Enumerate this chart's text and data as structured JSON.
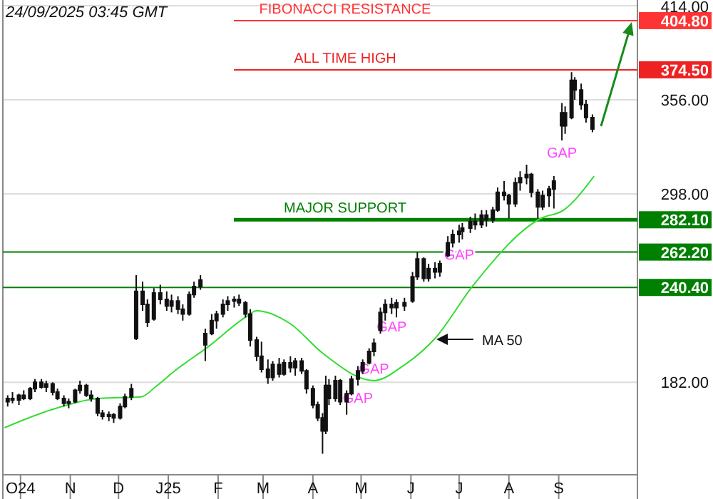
{
  "chart_data": {
    "type": "candlestick",
    "title": "24/09/2025 03:45 GMT",
    "x": [
      "2024-09-23",
      "2024-09-26",
      "2024-09-30",
      "2024-10-03",
      "2024-10-07",
      "2024-10-10",
      "2024-10-14",
      "2024-10-17",
      "2024-10-21",
      "2024-10-24",
      "2024-10-28",
      "2024-10-31",
      "2024-11-04",
      "2024-11-07",
      "2024-11-11",
      "2024-11-14",
      "2024-11-18",
      "2024-11-21",
      "2024-11-25",
      "2024-11-28",
      "2024-12-02",
      "2024-12-05",
      "2024-12-09",
      "2024-12-12",
      "2024-12-16",
      "2024-12-19",
      "2024-12-23",
      "2024-12-27",
      "2024-12-31",
      "2025-01-03",
      "2025-01-07",
      "2025-01-10",
      "2025-01-14",
      "2025-01-17",
      "2025-01-21",
      "2025-01-24",
      "2025-01-28",
      "2025-01-31",
      "2025-02-04",
      "2025-02-07",
      "2025-02-11",
      "2025-02-14",
      "2025-02-18",
      "2025-02-21",
      "2025-02-25",
      "2025-02-28",
      "2025-03-04",
      "2025-03-07",
      "2025-03-11",
      "2025-03-14",
      "2025-03-18",
      "2025-03-21",
      "2025-03-25",
      "2025-03-28",
      "2025-04-01",
      "2025-04-04",
      "2025-04-07",
      "2025-04-09",
      "2025-04-11",
      "2025-04-15",
      "2025-04-18",
      "2025-04-22",
      "2025-04-25",
      "2025-04-29",
      "2025-05-02",
      "2025-05-06",
      "2025-05-09",
      "2025-05-13",
      "2025-05-16",
      "2025-05-20",
      "2025-05-23",
      "2025-05-28",
      "2025-06-02",
      "2025-06-05",
      "2025-06-09",
      "2025-06-12",
      "2025-06-16",
      "2025-06-19",
      "2025-06-24",
      "2025-06-27",
      "2025-07-01",
      "2025-07-03",
      "2025-07-08",
      "2025-07-11",
      "2025-07-15",
      "2025-07-18",
      "2025-07-22",
      "2025-07-25",
      "2025-07-29",
      "2025-08-01",
      "2025-08-05",
      "2025-08-08",
      "2025-08-12",
      "2025-08-15",
      "2025-08-19",
      "2025-08-22",
      "2025-08-26",
      "2025-08-29",
      "2025-09-03",
      "2025-09-05",
      "2025-09-09",
      "2025-09-11",
      "2025-09-15",
      "2025-09-18",
      "2025-09-22"
    ],
    "ohlc": [
      [
        170,
        174,
        167,
        172
      ],
      [
        172,
        176,
        169,
        171
      ],
      [
        171,
        175,
        168,
        174
      ],
      [
        174,
        177,
        171,
        172
      ],
      [
        172,
        179,
        171,
        178
      ],
      [
        178,
        184,
        176,
        182
      ],
      [
        182,
        184,
        178,
        179
      ],
      [
        179,
        183,
        176,
        181
      ],
      [
        181,
        182,
        174,
        176
      ],
      [
        176,
        178,
        171,
        172
      ],
      [
        172,
        174,
        167,
        169
      ],
      [
        169,
        172,
        166,
        170
      ],
      [
        170,
        178,
        169,
        177
      ],
      [
        177,
        183,
        175,
        180
      ],
      [
        180,
        181,
        173,
        174
      ],
      [
        174,
        177,
        170,
        172
      ],
      [
        172,
        173,
        161,
        163
      ],
      [
        163,
        165,
        159,
        161
      ],
      [
        161,
        164,
        158,
        162
      ],
      [
        162,
        163,
        157,
        160
      ],
      [
        160,
        169,
        159,
        167
      ],
      [
        167,
        175,
        166,
        173
      ],
      [
        173,
        181,
        171,
        178
      ],
      [
        209,
        248,
        208,
        238
      ],
      [
        238,
        244,
        226,
        230
      ],
      [
        230,
        233,
        216,
        219
      ],
      [
        221,
        240,
        220,
        237
      ],
      [
        237,
        242,
        230,
        233
      ],
      [
        233,
        238,
        226,
        229
      ],
      [
        229,
        236,
        225,
        232
      ],
      [
        232,
        235,
        224,
        227
      ],
      [
        227,
        230,
        220,
        224
      ],
      [
        224,
        238,
        223,
        236
      ],
      [
        236,
        244,
        234,
        241
      ],
      [
        241,
        248,
        239,
        245
      ],
      [
        205,
        215,
        195,
        212
      ],
      [
        212,
        224,
        211,
        220
      ],
      [
        220,
        226,
        215,
        224
      ],
      [
        224,
        233,
        222,
        230
      ],
      [
        230,
        235,
        226,
        232
      ],
      [
        232,
        235,
        228,
        233
      ],
      [
        233,
        236,
        229,
        231
      ],
      [
        231,
        232,
        222,
        224
      ],
      [
        224,
        227,
        204,
        208
      ],
      [
        208,
        210,
        195,
        198
      ],
      [
        198,
        207,
        188,
        190
      ],
      [
        190,
        196,
        181,
        185
      ],
      [
        185,
        195,
        183,
        193
      ],
      [
        193,
        197,
        185,
        187
      ],
      [
        187,
        196,
        186,
        194
      ],
      [
        194,
        198,
        188,
        191
      ],
      [
        191,
        197,
        186,
        195
      ],
      [
        195,
        197,
        187,
        189
      ],
      [
        189,
        190,
        175,
        178
      ],
      [
        178,
        180,
        166,
        168
      ],
      [
        168,
        170,
        158,
        160
      ],
      [
        160,
        163,
        138,
        152
      ],
      [
        152,
        186,
        150,
        180
      ],
      [
        180,
        184,
        168,
        172
      ],
      [
        172,
        186,
        170,
        183
      ],
      [
        183,
        184,
        168,
        170
      ],
      [
        170,
        177,
        162,
        175
      ],
      [
        175,
        186,
        174,
        184
      ],
      [
        184,
        192,
        180,
        189
      ],
      [
        189,
        196,
        187,
        194
      ],
      [
        194,
        203,
        193,
        201
      ],
      [
        201,
        209,
        198,
        206
      ],
      [
        214,
        228,
        212,
        225
      ],
      [
        225,
        233,
        220,
        230
      ],
      [
        230,
        234,
        224,
        228
      ],
      [
        228,
        233,
        222,
        231
      ],
      [
        231,
        234,
        226,
        229
      ],
      [
        232,
        250,
        231,
        247
      ],
      [
        247,
        262,
        245,
        258
      ],
      [
        258,
        259,
        244,
        246
      ],
      [
        246,
        255,
        244,
        252
      ],
      [
        252,
        256,
        246,
        250
      ],
      [
        250,
        257,
        247,
        255
      ],
      [
        260,
        272,
        259,
        268
      ],
      [
        268,
        276,
        265,
        273
      ],
      [
        273,
        279,
        268,
        275
      ],
      [
        275,
        280,
        270,
        277
      ],
      [
        277,
        284,
        274,
        281
      ],
      [
        281,
        286,
        276,
        279
      ],
      [
        279,
        288,
        277,
        285
      ],
      [
        285,
        288,
        278,
        282
      ],
      [
        282,
        290,
        280,
        288
      ],
      [
        288,
        302,
        287,
        299
      ],
      [
        299,
        306,
        294,
        297
      ],
      [
        297,
        298,
        283,
        292
      ],
      [
        292,
        308,
        290,
        305
      ],
      [
        305,
        312,
        300,
        308
      ],
      [
        308,
        316,
        304,
        310
      ],
      [
        310,
        311,
        296,
        299
      ],
      [
        299,
        301,
        283,
        290
      ],
      [
        290,
        300,
        288,
        297
      ],
      [
        297,
        303,
        290,
        301
      ],
      [
        301,
        309,
        289,
        306
      ],
      [
        340,
        354,
        331,
        348
      ],
      [
        348,
        352,
        335,
        340
      ],
      [
        345,
        373,
        344,
        368
      ],
      [
        368,
        370,
        356,
        362
      ],
      [
        362,
        366,
        350,
        353
      ],
      [
        353,
        356,
        342,
        345
      ],
      [
        345,
        347,
        336,
        338
      ]
    ],
    "series": [
      {
        "type": "line",
        "color": "#33dd33",
        "x": [
          "2024-09-21",
          "2024-10-20",
          "2024-11-19",
          "2024-12-15",
          "2024-12-25",
          "2025-01-05",
          "2025-01-26",
          "2025-02-18",
          "2025-02-25",
          "2025-03-18",
          "2025-04-07",
          "2025-05-09",
          "2025-05-27",
          "2025-06-16",
          "2025-07-10",
          "2025-08-21",
          "2025-09-04",
          "2025-09-23"
        ],
        "values": [
          154,
          165,
          172,
          173,
          180,
          189,
          204,
          222,
          226,
          218,
          200,
          183,
          192,
          209,
          242,
          283,
          288,
          309
        ]
      }
    ],
    "xlim": [
      "2024-09-20",
      "2025-10-20"
    ],
    "xticks": [
      {
        "value": "2024-10-01",
        "label": "O24"
      },
      {
        "value": "2024-11-01",
        "label": "N"
      },
      {
        "value": "2024-12-01",
        "label": "D"
      },
      {
        "value": "2025-01-01",
        "label": "J25"
      },
      {
        "value": "2025-02-01",
        "label": "F"
      },
      {
        "value": "2025-03-01",
        "label": "M"
      },
      {
        "value": "2025-04-01",
        "label": "A"
      },
      {
        "value": "2025-05-01",
        "label": "M"
      },
      {
        "value": "2025-06-01",
        "label": "J"
      },
      {
        "value": "2025-07-01",
        "label": "J"
      },
      {
        "value": "2025-08-01",
        "label": "A"
      },
      {
        "value": "2025-09-01",
        "label": "S"
      }
    ],
    "ylim": [
      125,
      417.5
    ],
    "yticks": [
      {
        "value": 182,
        "label": "182.00"
      },
      {
        "value": 282.1,
        "label": "282.10"
      },
      {
        "value": 298,
        "label": "298.00"
      },
      {
        "value": 356,
        "label": "356.00"
      },
      {
        "value": 374.5,
        "label": "374.50"
      },
      {
        "value": 404.8,
        "label": "404.80"
      },
      {
        "value": 414,
        "label": "414.00"
      }
    ],
    "grid": "y",
    "ref_lines": [
      {
        "axis": "y",
        "value": 404.8,
        "label": "FIBONACCI RESISTANCE",
        "color": "#ff3333"
      },
      {
        "axis": "y",
        "value": 374.5,
        "label": "ALL TIME HIGH",
        "color": "#ee2222"
      },
      {
        "axis": "y",
        "value": 282.1,
        "label": "MAJOR SUPPORT",
        "color": "#008000"
      },
      {
        "axis": "y",
        "value": 262.2,
        "label": "262.20",
        "color": "#008000"
      },
      {
        "axis": "y",
        "value": 240.4,
        "label": "240.40",
        "color": "#008000"
      }
    ],
    "annotations": [
      {
        "text": "GAP",
        "x": "2025-04-29",
        "y": 180
      },
      {
        "text": "GAP",
        "x": "2025-05-09",
        "y": 198
      },
      {
        "text": "GAP",
        "x": "2025-05-20",
        "y": 224
      },
      {
        "text": "GAP",
        "x": "2025-07-01",
        "y": 268
      },
      {
        "text": "GAP",
        "x": "2025-09-03",
        "y": 331
      },
      "MA 50"
    ]
  }
}
